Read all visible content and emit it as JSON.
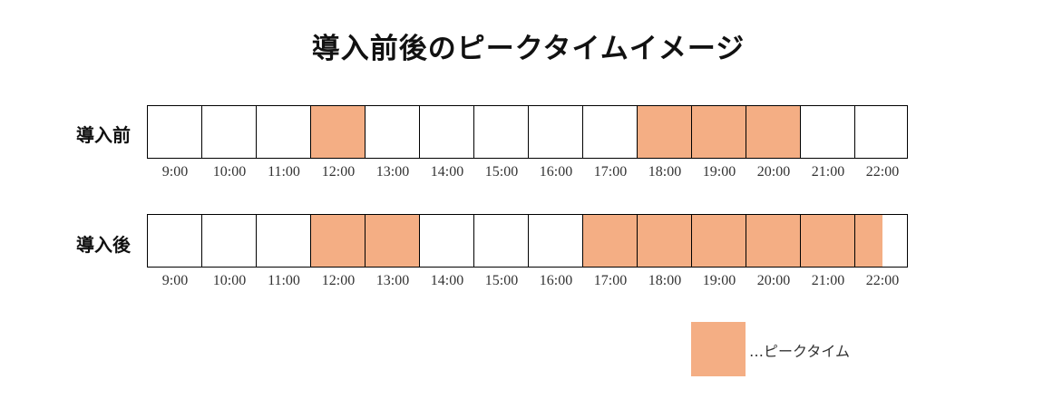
{
  "title": "導入前後のピークタイムイメージ",
  "peak_color": "#f4ae84",
  "time_ticks": [
    "9:00",
    "10:00",
    "11:00",
    "12:00",
    "13:00",
    "14:00",
    "15:00",
    "16:00",
    "17:00",
    "18:00",
    "19:00",
    "20:00",
    "21:00",
    "22:00"
  ],
  "rows": [
    {
      "label": "導入前",
      "peak_ranges": [
        {
          "start": "12:00",
          "end": "13:00"
        },
        {
          "start": "18:00",
          "end": "21:00"
        }
      ]
    },
    {
      "label": "導入後",
      "peak_ranges": [
        {
          "start": "12:00",
          "end": "14:00"
        },
        {
          "start": "17:00",
          "end": "22:30"
        }
      ]
    }
  ],
  "legend": {
    "label": "…ピークタイム"
  }
}
